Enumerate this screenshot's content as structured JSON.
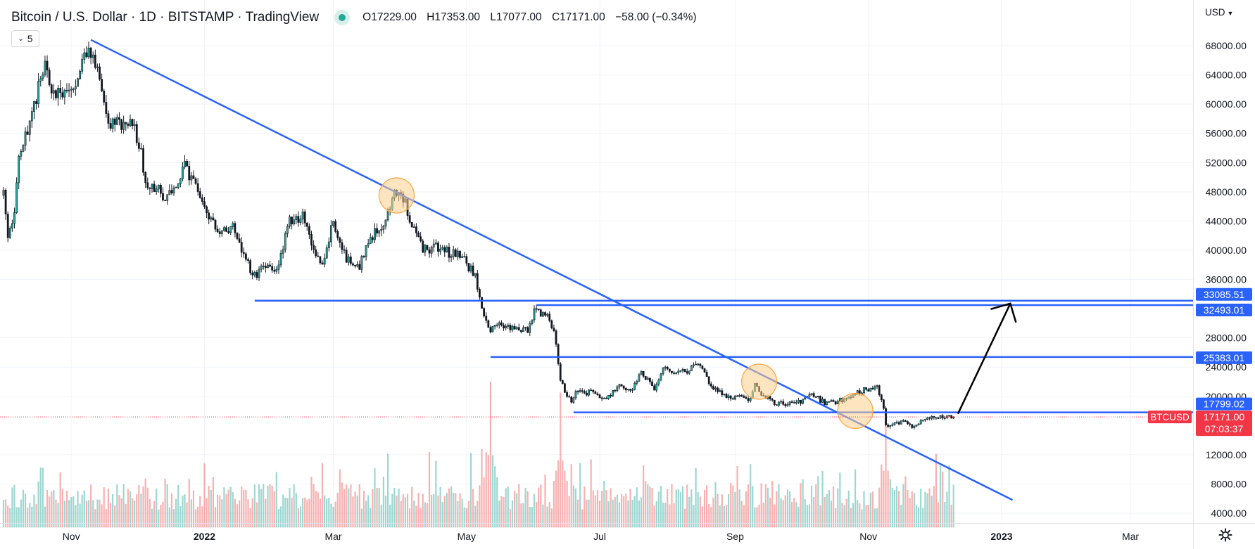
{
  "header": {
    "title": "Bitcoin / U.S. Dollar · 1D · BITSTAMP · TradingView",
    "ohlc": [
      {
        "key": "O",
        "value": "17229.00"
      },
      {
        "key": "H",
        "value": "17353.00"
      },
      {
        "key": "L",
        "value": "17077.00"
      },
      {
        "key": "C",
        "value": "17171.00"
      }
    ],
    "change": "−58.00 (−0.34%)",
    "indicator_count": "5",
    "currency": "USD"
  },
  "icons": {
    "status": "market-status-dot-icon",
    "indicators_chevron": "chevron-down-icon",
    "currency_chevron": "chevron-down-icon",
    "settings": "gear-icon"
  },
  "colors": {
    "up": "#26a69a",
    "down": "#ef5350",
    "candle": "#131722",
    "drawing": "#2962ff",
    "highlight_fill": "#ffcf8a",
    "highlight_stroke": "#f7a542",
    "last_price": "#f23645",
    "level_label": "#2962ff",
    "grid": "#f0f3fa",
    "arrow": "#000000"
  },
  "chart_data": {
    "type": "candlestick",
    "symbol": "BTCUSD",
    "x_ticks": [
      "Nov",
      "2022",
      "Mar",
      "May",
      "Jul",
      "Sep",
      "Nov",
      "2023",
      "Mar"
    ],
    "bold_ticks": [
      "2022",
      "2023"
    ],
    "y_ticks": [
      "68000.00",
      "64000.00",
      "60000.00",
      "56000.00",
      "52000.00",
      "48000.00",
      "44000.00",
      "40000.00",
      "36000.00",
      "28000.00",
      "24000.00",
      "20000.00",
      "12000.00",
      "8000.00",
      "4000.00"
    ],
    "ylim": [
      3000,
      70000
    ],
    "grid": true,
    "price_path": [
      [
        "2021-10-01",
        47500
      ],
      [
        "2021-10-03",
        42000
      ],
      [
        "2021-10-06",
        44500
      ],
      [
        "2021-10-08",
        53000
      ],
      [
        "2021-10-13",
        57000
      ],
      [
        "2021-10-16",
        61000
      ],
      [
        "2021-10-20",
        65500
      ],
      [
        "2021-10-24",
        61000
      ],
      [
        "2021-10-28",
        62000
      ],
      [
        "2021-11-03",
        61500
      ],
      [
        "2021-11-09",
        68500
      ],
      [
        "2021-11-13",
        64500
      ],
      [
        "2021-11-18",
        57000
      ],
      [
        "2021-11-24",
        57500
      ],
      [
        "2021-11-29",
        57200
      ],
      [
        "2021-12-03",
        53500
      ],
      [
        "2021-12-05",
        49000
      ],
      [
        "2021-12-10",
        48500
      ],
      [
        "2021-12-15",
        47000
      ],
      [
        "2021-12-23",
        51500
      ],
      [
        "2021-12-31",
        47000
      ],
      [
        "2022-01-07",
        42000
      ],
      [
        "2022-01-14",
        43000
      ],
      [
        "2022-01-21",
        38000
      ],
      [
        "2022-01-24",
        36500
      ],
      [
        "2022-01-28",
        37500
      ],
      [
        "2022-02-03",
        37000
      ],
      [
        "2022-02-09",
        44000
      ],
      [
        "2022-02-15",
        44500
      ],
      [
        "2022-02-20",
        40000
      ],
      [
        "2022-02-24",
        38000
      ],
      [
        "2022-03-01",
        44000
      ],
      [
        "2022-03-07",
        38500
      ],
      [
        "2022-03-13",
        38000
      ],
      [
        "2022-03-18",
        41500
      ],
      [
        "2022-03-24",
        44000
      ],
      [
        "2022-03-29",
        47500
      ],
      [
        "2022-04-03",
        46500
      ],
      [
        "2022-04-06",
        43500
      ],
      [
        "2022-04-11",
        40000
      ],
      [
        "2022-04-18",
        40500
      ],
      [
        "2022-04-24",
        39500
      ],
      [
        "2022-04-28",
        39500
      ],
      [
        "2022-05-05",
        36500
      ],
      [
        "2022-05-09",
        31000
      ],
      [
        "2022-05-12",
        29000
      ],
      [
        "2022-05-16",
        30000
      ],
      [
        "2022-05-23",
        29000
      ],
      [
        "2022-05-29",
        29000
      ],
      [
        "2022-06-01",
        31500
      ],
      [
        "2022-06-07",
        31000
      ],
      [
        "2022-06-10",
        29000
      ],
      [
        "2022-06-13",
        22000
      ],
      [
        "2022-06-18",
        19000
      ],
      [
        "2022-06-20",
        20500
      ],
      [
        "2022-06-28",
        20500
      ],
      [
        "2022-07-04",
        19500
      ],
      [
        "2022-07-09",
        21500
      ],
      [
        "2022-07-15",
        20800
      ],
      [
        "2022-07-20",
        23200
      ],
      [
        "2022-07-26",
        21200
      ],
      [
        "2022-07-30",
        23800
      ],
      [
        "2022-08-05",
        23200
      ],
      [
        "2022-08-10",
        23500
      ],
      [
        "2022-08-14",
        24300
      ],
      [
        "2022-08-18",
        23300
      ],
      [
        "2022-08-21",
        21400
      ],
      [
        "2022-08-28",
        20000
      ],
      [
        "2022-09-04",
        19800
      ],
      [
        "2022-09-07",
        19300
      ],
      [
        "2022-09-10",
        21600
      ],
      [
        "2022-09-13",
        20200
      ],
      [
        "2022-09-20",
        19000
      ],
      [
        "2022-09-25",
        18900
      ],
      [
        "2022-10-01",
        19300
      ],
      [
        "2022-10-06",
        20300
      ],
      [
        "2022-10-12",
        19100
      ],
      [
        "2022-10-18",
        19300
      ],
      [
        "2022-10-25",
        20100
      ],
      [
        "2022-10-29",
        20800
      ],
      [
        "2022-11-05",
        21200
      ],
      [
        "2022-11-08",
        18500
      ],
      [
        "2022-11-09",
        15900
      ],
      [
        "2022-11-13",
        16300
      ],
      [
        "2022-11-18",
        16700
      ],
      [
        "2022-11-21",
        15800
      ],
      [
        "2022-11-24",
        16500
      ],
      [
        "2022-11-30",
        17100
      ],
      [
        "2022-12-06",
        17100
      ],
      [
        "2022-12-10",
        17171
      ]
    ],
    "drawings": {
      "trendline": {
        "from": [
          "2021-11-10",
          68800
        ],
        "to": [
          "2023-01-06",
          5800
        ]
      },
      "horizontal_levels": [
        {
          "from": "2022-01-24",
          "value": 33085.51,
          "label": "33085.51"
        },
        {
          "from": "2022-06-02",
          "value": 32493.01,
          "label": "32493.01"
        },
        {
          "from": "2022-05-12",
          "value": 25383.01,
          "label": "25383.01"
        },
        {
          "from": "2022-06-19",
          "value": 17799.02,
          "label": "17799.02"
        }
      ],
      "highlight_circles": [
        {
          "date": "2022-03-30",
          "value": 47500
        },
        {
          "date": "2022-09-12",
          "value": 22000
        },
        {
          "date": "2022-10-26",
          "value": 18000
        }
      ],
      "projection_arrow": {
        "from": [
          "2022-12-12",
          17600
        ],
        "to": [
          "2023-01-05",
          32700
        ]
      }
    },
    "last_price": {
      "value": 17171.0,
      "label": "17171.00",
      "countdown": "07:03:37",
      "symbol_label": "BTCUSD"
    },
    "volume_peaks": [
      {
        "date": "2022-05-12",
        "value": 19000
      },
      {
        "date": "2022-06-13",
        "value": 17500
      },
      {
        "date": "2022-11-09",
        "value": 14500
      }
    ]
  }
}
